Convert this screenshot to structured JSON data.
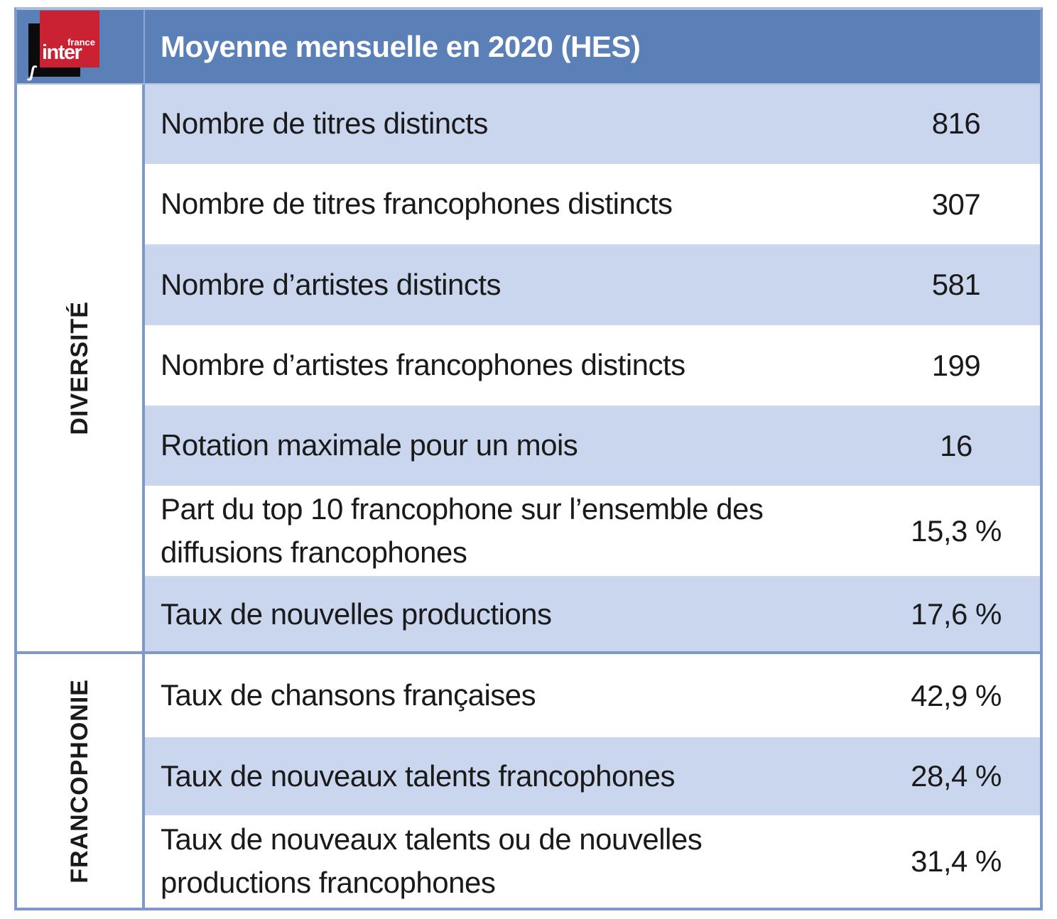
{
  "logo": {
    "brand_top": "france",
    "brand_main": "inter"
  },
  "header": {
    "title": "Moyenne mensuelle en 2020 (HES)"
  },
  "groups": [
    {
      "label": "DIVERSITÉ",
      "rows": [
        {
          "label": "Nombre de titres distincts",
          "value": "816"
        },
        {
          "label": "Nombre de titres francophones distincts",
          "value": "307"
        },
        {
          "label": "Nombre d’artistes distincts",
          "value": "581"
        },
        {
          "label": "Nombre d’artistes francophones distincts",
          "value": "199"
        },
        {
          "label": "Rotation maximale pour un mois",
          "value": "16"
        },
        {
          "label": "Part du top 10 francophone sur l’ensemble des diffusions francophones",
          "value": "15,3 %"
        },
        {
          "label": "Taux de nouvelles productions",
          "value": "17,6 %"
        }
      ]
    },
    {
      "label": "FRANCOPHONIE",
      "rows": [
        {
          "label": "Taux de chansons françaises",
          "value": "42,9 %"
        },
        {
          "label": "Taux de nouveaux talents francophones",
          "value": "28,4 %"
        },
        {
          "label": "Taux de nouveaux talents ou de nouvelles productions francophones",
          "value": "31,4 %"
        }
      ]
    }
  ],
  "colors": {
    "header_blue": "#5b80b8",
    "band_blue": "#c9d6ee",
    "border_blue": "#7e99c8",
    "logo_red": "#cb2233",
    "logo_black": "#0b0b0b",
    "title_text": "#ffffff",
    "body_text": "#1a1a1a"
  }
}
